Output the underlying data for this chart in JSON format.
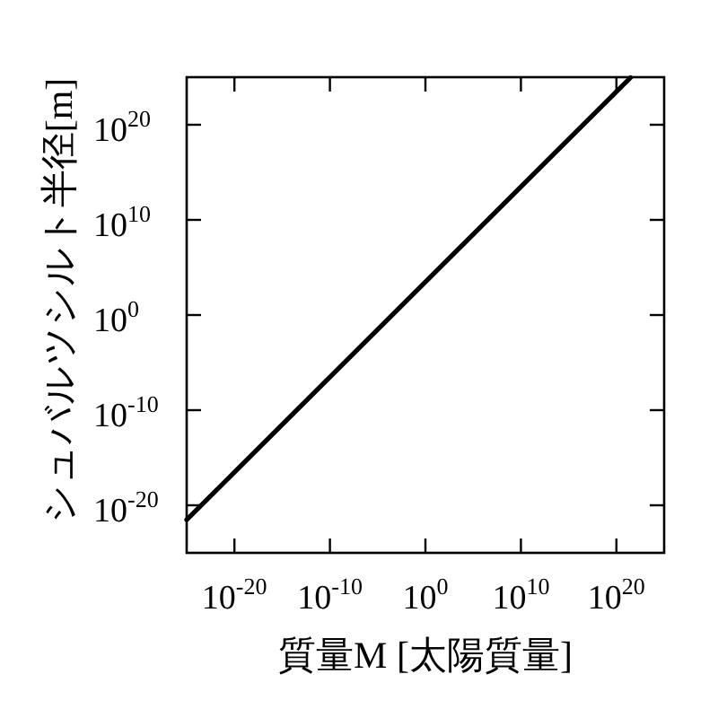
{
  "chart_data": {
    "type": "line",
    "xlabel": "質量M [太陽質量]",
    "ylabel": "シュバルツシルト半径[m]",
    "log": "xy",
    "xlim": [
      1e-25,
      1e+25
    ],
    "ylim": [
      1e-25,
      1e+25
    ],
    "xticks": [
      {
        "value": 1e-20,
        "label": "10$^{-20}$"
      },
      {
        "value": 1e-10,
        "label": "10$^{-10}$"
      },
      {
        "value": 1,
        "label": "10$^{0}$"
      },
      {
        "value": 10000000000.0,
        "label": "10$^{10}$"
      },
      {
        "value": 1e+20,
        "label": "10$^{20}$"
      }
    ],
    "yticks": [
      {
        "value": 1e-20,
        "label": "10$^{-20}$"
      },
      {
        "value": 1e-10,
        "label": "10$^{-10}$"
      },
      {
        "value": 1,
        "label": "10$^{0}$"
      },
      {
        "value": 10000000000.0,
        "label": "10$^{10}$"
      },
      {
        "value": 1e+20,
        "label": "10$^{20}$"
      }
    ],
    "x": [
      1e-25,
      1e-20,
      1e-10,
      1,
      10000000000.0,
      1e+20,
      3e+21
    ],
    "series": [
      {
        "color": "#000000",
        "values": [
          3e-22,
          3e-17,
          3e-07,
          3000.0,
          30000000000000.0,
          3e+23,
          9e+24
        ]
      }
    ]
  }
}
